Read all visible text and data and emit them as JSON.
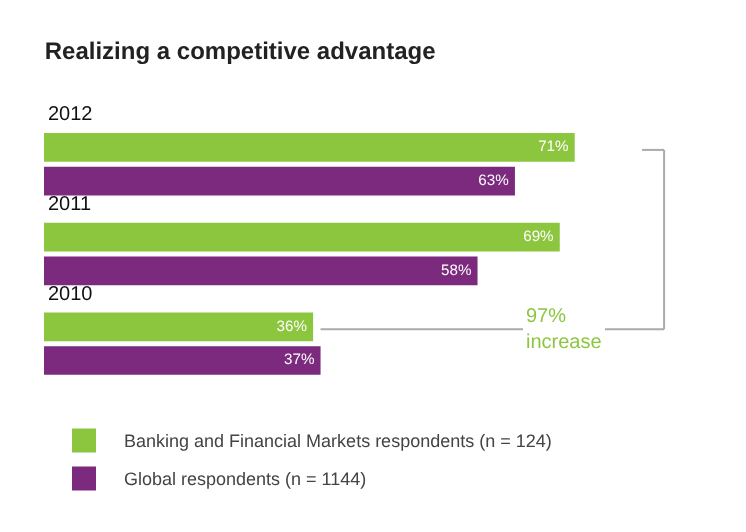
{
  "chart_data": {
    "type": "bar",
    "orientation": "horizontal",
    "title": "Realizing a competitive advantage",
    "categories": [
      "2012",
      "2011",
      "2010"
    ],
    "series": [
      {
        "name": "Banking and Financial Markets respondents (n = 124)",
        "color": "#8cc63f",
        "values": [
          71,
          69,
          36
        ],
        "value_labels": [
          "71%",
          "69%",
          "36%"
        ]
      },
      {
        "name": "Global respondents (n = 1144)",
        "color": "#7b2a7e",
        "values": [
          63,
          58,
          37
        ],
        "value_labels": [
          "63%",
          "58%",
          "37%"
        ]
      }
    ],
    "tick_labels": false,
    "legend": "bottom left",
    "annotations": [
      "97%\nincrease"
    ]
  }
}
